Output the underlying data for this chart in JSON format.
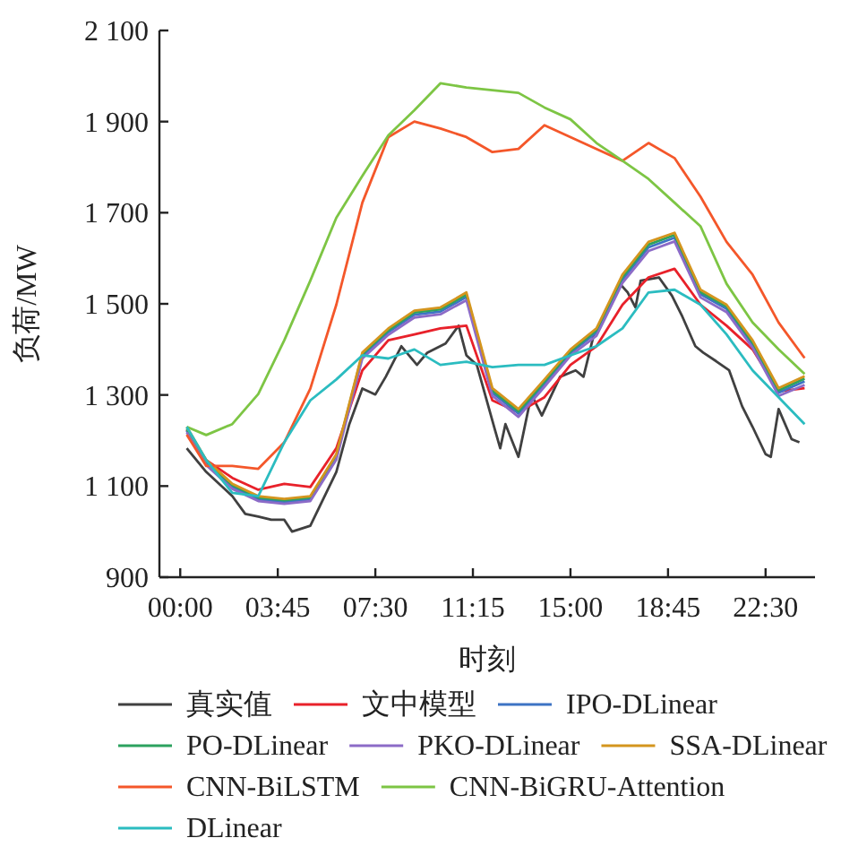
{
  "chart_data": {
    "type": "line",
    "xlabel": "时刻",
    "ylabel": "负荷/MW",
    "legend": "bottom",
    "xlim": [
      -0.8,
      24.4
    ],
    "ylim": [
      900,
      2100
    ],
    "xticks": [
      {
        "value": 0,
        "label": "00:00"
      },
      {
        "value": 3.75,
        "label": "03:45"
      },
      {
        "value": 7.5,
        "label": "07:30"
      },
      {
        "value": 11.25,
        "label": "11:15"
      },
      {
        "value": 15,
        "label": "15:00"
      },
      {
        "value": 18.75,
        "label": "18:45"
      },
      {
        "value": 22.5,
        "label": "22:30"
      }
    ],
    "yticks": [
      {
        "value": 900,
        "label": "900"
      },
      {
        "value": 1100,
        "label": "1 100"
      },
      {
        "value": 1300,
        "label": "1 300"
      },
      {
        "value": 1500,
        "label": "1 500"
      },
      {
        "value": 1700,
        "label": "1 700"
      },
      {
        "value": 1900,
        "label": "1 900"
      },
      {
        "value": 2100,
        "label": "2 100"
      }
    ],
    "x": [
      0.25,
      1,
      2,
      3,
      4,
      5,
      6,
      7,
      8,
      9,
      10,
      11,
      12,
      13,
      14,
      15,
      16,
      17,
      18,
      19,
      20,
      21,
      22,
      23,
      24
    ],
    "series": [
      {
        "name": "真实值",
        "color": "#404040",
        "x": [
          0.25,
          1,
          2,
          2.5,
          3,
          3.5,
          4,
          4.3,
          5,
          6,
          6.5,
          7,
          7.5,
          7.9,
          8.5,
          9.1,
          9.5,
          10.2,
          10.7,
          11,
          11.4,
          12.1,
          12.3,
          12.5,
          13,
          13.5,
          13.9,
          14.6,
          15.2,
          15.5,
          15.9,
          16.9,
          17.2,
          17.5,
          17.7,
          18.4,
          18.9,
          19.3,
          19.8,
          20.1,
          20.6,
          21.1,
          21.6,
          22,
          22.5,
          22.7,
          23,
          23.5,
          23.8
        ],
        "values": [
          1183,
          1131,
          1078,
          1039,
          1033,
          1026,
          1026,
          1000,
          1013,
          1131,
          1236,
          1314,
          1301,
          1340,
          1407,
          1366,
          1393,
          1413,
          1452,
          1387,
          1366,
          1223,
          1183,
          1236,
          1164,
          1301,
          1255,
          1340,
          1354,
          1340,
          1433,
          1544,
          1525,
          1492,
          1551,
          1558,
          1518,
          1472,
          1407,
          1393,
          1374,
          1354,
          1275,
          1230,
          1170,
          1164,
          1269,
          1203,
          1196
        ]
      },
      {
        "name": "文中模型",
        "color": "#e8212a",
        "values": [
          1223,
          1157,
          1118,
          1092,
          1105,
          1098,
          1183,
          1354,
          1420,
          1433,
          1446,
          1452,
          1288,
          1262,
          1295,
          1366,
          1407,
          1498,
          1558,
          1577,
          1498,
          1452,
          1400,
          1308,
          1315
        ]
      },
      {
        "name": "IPO-DLinear",
        "color": "#3d73c4",
        "values": [
          1222,
          1150,
          1098,
          1071,
          1065,
          1071,
          1163,
          1386,
          1438,
          1476,
          1483,
          1515,
          1305,
          1259,
          1324,
          1392,
          1437,
          1553,
          1624,
          1645,
          1521,
          1489,
          1410,
          1305,
          1330
        ]
      },
      {
        "name": "PO-DLinear",
        "color": "#2ca25f",
        "values": [
          1226,
          1154,
          1102,
          1075,
          1069,
          1075,
          1167,
          1390,
          1442,
          1481,
          1488,
          1520,
          1310,
          1264,
          1329,
          1396,
          1442,
          1559,
          1630,
          1651,
          1526,
          1494,
          1415,
          1310,
          1336
        ]
      },
      {
        "name": "PKO-DLinear",
        "color": "#8c6bc7",
        "values": [
          1218,
          1146,
          1094,
          1067,
          1061,
          1067,
          1158,
          1380,
          1432,
          1470,
          1477,
          1508,
          1298,
          1252,
          1318,
          1386,
          1430,
          1546,
          1616,
          1637,
          1514,
          1482,
          1404,
          1298,
          1322
        ]
      },
      {
        "name": "SSA-DLinear",
        "color": "#d4951e",
        "values": [
          1230,
          1157,
          1105,
          1078,
          1072,
          1078,
          1170,
          1393,
          1446,
          1485,
          1492,
          1525,
          1315,
          1269,
          1334,
          1400,
          1446,
          1564,
          1636,
          1656,
          1531,
          1498,
          1420,
          1315,
          1341
        ]
      },
      {
        "name": "CNN-BiLSTM",
        "color": "#f4572a",
        "values": [
          1213,
          1144,
          1144,
          1138,
          1196,
          1314,
          1498,
          1722,
          1866,
          1900,
          1885,
          1866,
          1833,
          1840,
          1892,
          1866,
          1840,
          1814,
          1853,
          1820,
          1735,
          1636,
          1564,
          1459,
          1381
        ]
      },
      {
        "name": "CNN-BiGRU-Attention",
        "color": "#7dc544",
        "values": [
          1230,
          1212,
          1236,
          1302,
          1420,
          1551,
          1689,
          1781,
          1870,
          1925,
          1984,
          1975,
          1969,
          1963,
          1931,
          1905,
          1853,
          1814,
          1774,
          1722,
          1670,
          1544,
          1459,
          1400,
          1346
        ]
      },
      {
        "name": "DLinear",
        "color": "#2bbcc0",
        "values": [
          1230,
          1157,
          1085,
          1078,
          1196,
          1288,
          1334,
          1387,
          1380,
          1400,
          1366,
          1373,
          1361,
          1366,
          1366,
          1387,
          1407,
          1446,
          1525,
          1531,
          1498,
          1433,
          1354,
          1295,
          1236
        ]
      }
    ]
  }
}
